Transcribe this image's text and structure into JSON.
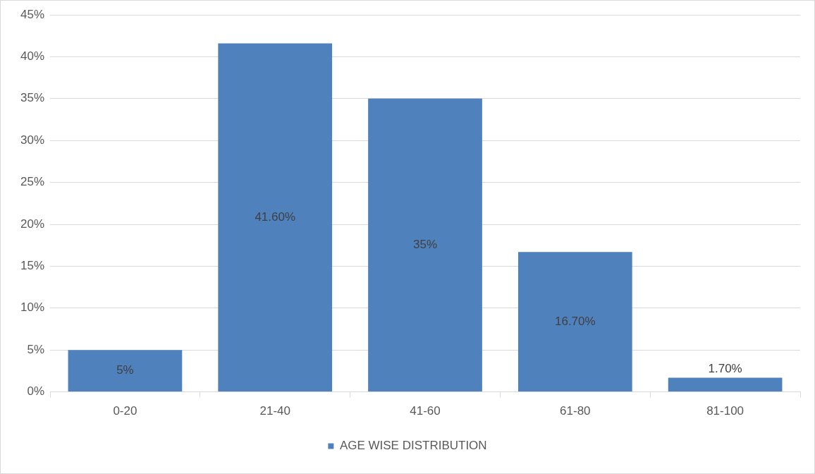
{
  "chart_data": {
    "type": "bar",
    "categories": [
      "0-20",
      "21-40",
      "41-60",
      "61-80",
      "81-100"
    ],
    "series": [
      {
        "name": "AGE WISE DISTRIBUTION",
        "color": "#4f81bd",
        "values": [
          5,
          41.6,
          35,
          16.7,
          1.7
        ],
        "value_labels": [
          "5%",
          "41.60%",
          "35%",
          "16.70%",
          "1.70%"
        ]
      }
    ],
    "ylim": [
      0,
      45
    ],
    "yticks": [
      {
        "value": 0,
        "label": "0%"
      },
      {
        "value": 5,
        "label": "5%"
      },
      {
        "value": 10,
        "label": "10%"
      },
      {
        "value": 15,
        "label": "15%"
      },
      {
        "value": 20,
        "label": "20%"
      },
      {
        "value": 25,
        "label": "25%"
      },
      {
        "value": 30,
        "label": "30%"
      },
      {
        "value": 35,
        "label": "35%"
      },
      {
        "value": 40,
        "label": "40%"
      },
      {
        "value": 45,
        "label": "45%"
      }
    ],
    "grid": "y",
    "legend": "bottom"
  }
}
